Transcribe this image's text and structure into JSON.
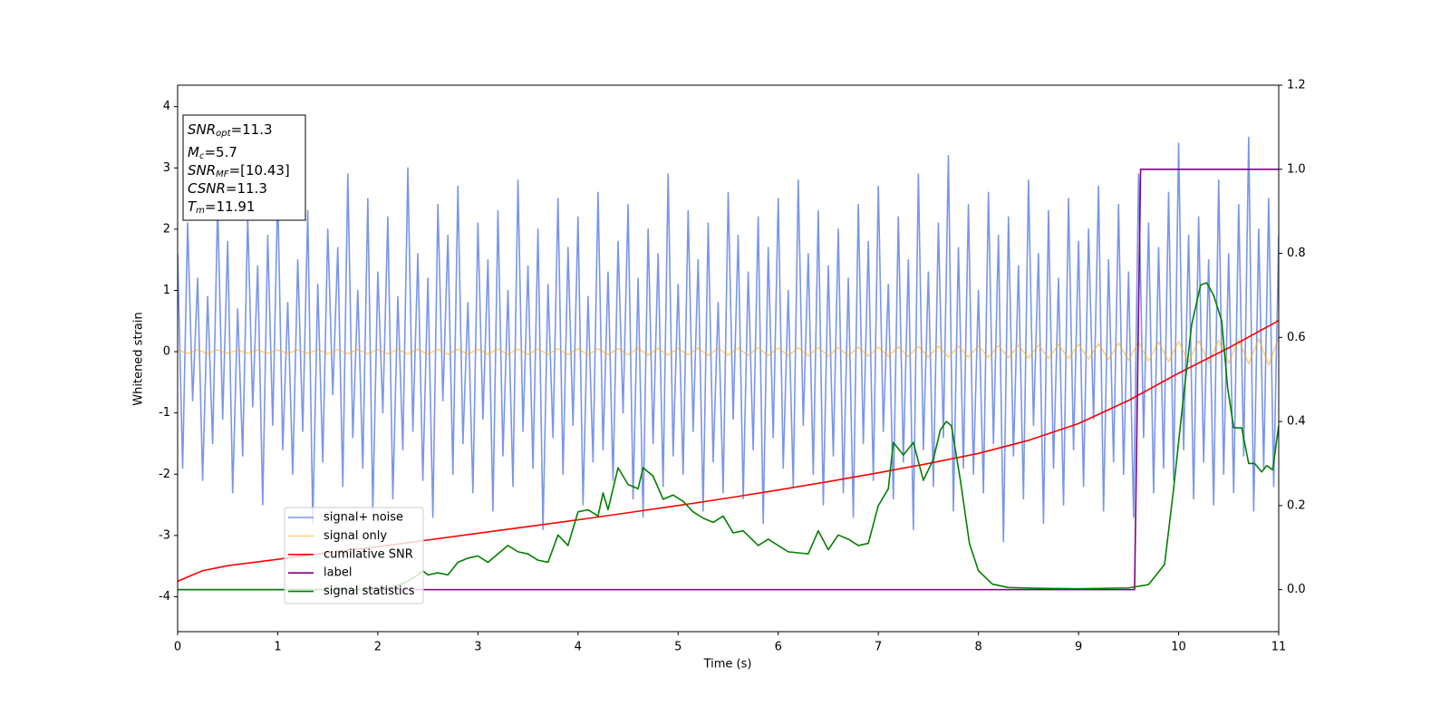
{
  "chart_data": {
    "type": "line",
    "xlabel": "Time (s)",
    "ylabel": "Whitened strain",
    "xlim": [
      0,
      11
    ],
    "xticks": [
      0,
      1,
      2,
      3,
      4,
      5,
      6,
      7,
      8,
      9,
      10,
      11
    ],
    "ylim": [
      -4.57,
      4.35
    ],
    "yticks": [
      -4,
      -3,
      -2,
      -1,
      0,
      1,
      2,
      3,
      4
    ],
    "y2lim": [
      -0.1,
      1.2
    ],
    "y2ticks": [
      {
        "value": 0,
        "label": "0.0"
      },
      {
        "value": 0.2,
        "label": "0.2"
      },
      {
        "value": 0.4,
        "label": "0.4"
      },
      {
        "value": 0.6,
        "label": "0.6"
      },
      {
        "value": 0.8,
        "label": "0.8"
      },
      {
        "value": 1,
        "label": "1.0"
      },
      {
        "value": 1.2,
        "label": "1.2"
      }
    ],
    "legend": "lower left",
    "annotation": [
      {
        "name": "SNR",
        "sub": "opt",
        "text": "=11.3"
      },
      {
        "name": "M",
        "sub": "c",
        "text": "=5.7"
      },
      {
        "name": "SNR",
        "sub": "MF",
        "text": "=[10.43]"
      },
      {
        "name": "CSNR",
        "text": "=11.3"
      },
      {
        "name": "T",
        "sub": "m",
        "text": "=11.91"
      }
    ],
    "series": [
      {
        "name": "signal+ noise",
        "color": "#4169e1",
        "alpha": 0.7,
        "x": [
          0,
          0.05,
          0.1,
          0.15,
          0.2,
          0.25,
          0.3,
          0.35,
          0.4,
          0.45,
          0.5,
          0.55,
          0.6,
          0.65,
          0.7,
          0.75,
          0.8,
          0.85,
          0.9,
          0.95,
          1,
          1.05,
          1.1,
          1.15,
          1.2,
          1.25,
          1.3,
          1.35,
          1.4,
          1.45,
          1.5,
          1.55,
          1.6,
          1.65,
          1.7,
          1.75,
          1.8,
          1.85,
          1.9,
          1.95,
          2,
          2.05,
          2.1,
          2.15,
          2.2,
          2.25,
          2.3,
          2.35,
          2.4,
          2.45,
          2.5,
          2.55,
          2.6,
          2.65,
          2.7,
          2.75,
          2.8,
          2.85,
          2.9,
          2.95,
          3,
          3.05,
          3.1,
          3.15,
          3.2,
          3.25,
          3.3,
          3.35,
          3.4,
          3.45,
          3.5,
          3.55,
          3.6,
          3.65,
          3.7,
          3.75,
          3.8,
          3.85,
          3.9,
          3.95,
          4,
          4.05,
          4.1,
          4.15,
          4.2,
          4.25,
          4.3,
          4.35,
          4.4,
          4.45,
          4.5,
          4.55,
          4.6,
          4.65,
          4.7,
          4.75,
          4.8,
          4.85,
          4.9,
          4.95,
          5,
          5.05,
          5.1,
          5.15,
          5.2,
          5.25,
          5.3,
          5.35,
          5.4,
          5.45,
          5.5,
          5.55,
          5.6,
          5.65,
          5.7,
          5.75,
          5.8,
          5.85,
          5.9,
          5.95,
          6,
          6.05,
          6.1,
          6.15,
          6.2,
          6.25,
          6.3,
          6.35,
          6.4,
          6.45,
          6.5,
          6.55,
          6.6,
          6.65,
          6.7,
          6.75,
          6.8,
          6.85,
          6.9,
          6.95,
          7,
          7.05,
          7.1,
          7.15,
          7.2,
          7.25,
          7.3,
          7.35,
          7.4,
          7.45,
          7.5,
          7.55,
          7.6,
          7.65,
          7.7,
          7.75,
          7.8,
          7.85,
          7.9,
          7.95,
          8,
          8.05,
          8.1,
          8.15,
          8.2,
          8.25,
          8.3,
          8.35,
          8.4,
          8.45,
          8.5,
          8.55,
          8.6,
          8.65,
          8.7,
          8.75,
          8.8,
          8.85,
          8.9,
          8.95,
          9,
          9.05,
          9.1,
          9.15,
          9.2,
          9.25,
          9.3,
          9.35,
          9.4,
          9.45,
          9.5,
          9.55,
          9.6,
          9.65,
          9.7,
          9.75,
          9.8,
          9.85,
          9.9,
          9.95,
          10,
          10.05,
          10.1,
          10.15,
          10.2,
          10.25,
          10.3,
          10.35,
          10.4,
          10.45,
          10.5,
          10.55,
          10.6,
          10.65,
          10.7,
          10.75,
          10.8,
          10.85,
          10.9,
          10.95,
          11
        ],
        "values": [
          1.6,
          -1.9,
          2.1,
          -0.8,
          1.2,
          -2.1,
          0.9,
          -1.5,
          2.4,
          -1.1,
          1.8,
          -2.3,
          0.7,
          -1.7,
          2.2,
          -0.9,
          1.4,
          -2.5,
          1.9,
          -1.2,
          2.6,
          -1.6,
          0.8,
          -2.0,
          1.5,
          -1.3,
          2.3,
          -2.8,
          1.1,
          -1.8,
          2.0,
          -0.7,
          1.7,
          -2.2,
          2.9,
          -1.4,
          1.0,
          -1.9,
          2.5,
          -2.6,
          1.3,
          -1.0,
          2.2,
          -2.4,
          0.9,
          -1.6,
          3.0,
          -1.3,
          1.6,
          -2.1,
          1.2,
          -2.7,
          2.4,
          -0.8,
          1.9,
          -2.0,
          2.7,
          -1.5,
          0.8,
          -2.3,
          2.1,
          -1.1,
          1.5,
          -2.6,
          2.3,
          -1.7,
          1.0,
          -2.2,
          2.8,
          -1.3,
          1.4,
          -1.9,
          2.0,
          -2.9,
          1.1,
          -1.4,
          2.5,
          -2.0,
          1.7,
          -1.2,
          2.2,
          -2.5,
          0.9,
          -1.8,
          2.6,
          -1.6,
          1.3,
          -2.1,
          1.8,
          -1.0,
          2.4,
          -2.4,
          1.2,
          -2.7,
          2.0,
          -1.5,
          1.6,
          -2.2,
          2.9,
          -1.7,
          1.1,
          -2.0,
          2.3,
          -1.3,
          1.5,
          -2.6,
          2.1,
          -1.8,
          0.8,
          -2.3,
          2.6,
          -1.1,
          1.9,
          -2.4,
          1.3,
          -1.6,
          2.2,
          -2.8,
          1.7,
          -1.4,
          2.5,
          -1.9,
          1.0,
          -2.2,
          2.8,
          -1.2,
          1.6,
          -2.0,
          2.3,
          -2.5,
          1.4,
          -1.7,
          2.0,
          -2.3,
          1.2,
          -2.7,
          2.4,
          -1.5,
          1.8,
          -2.1,
          2.7,
          -1.3,
          1.1,
          -2.4,
          2.2,
          -1.8,
          1.5,
          -2.9,
          2.9,
          -1.6,
          1.3,
          -2.2,
          2.1,
          -1.4,
          3.2,
          -2.6,
          1.7,
          -1.9,
          2.4,
          -2.0,
          1.0,
          -2.3,
          2.6,
          -1.5,
          1.9,
          -3.1,
          2.2,
          -1.7,
          1.4,
          -2.4,
          2.8,
          -1.2,
          1.6,
          -2.8,
          2.3,
          -1.9,
          1.2,
          -2.5,
          2.5,
          -1.6,
          1.8,
          -2.2,
          2.0,
          -1.1,
          2.7,
          -2.6,
          1.5,
          -1.8,
          2.4,
          -2.0,
          1.3,
          -2.7,
          2.9,
          -1.4,
          2.1,
          -2.3,
          1.7,
          -1.9,
          2.6,
          -2.1,
          3.4,
          -1.6,
          1.9,
          -2.4,
          2.2,
          -1.8,
          1.5,
          -2.5,
          2.8,
          -2.0,
          1.6,
          -2.3,
          2.4,
          -1.7,
          3.5,
          -2.6,
          2.0,
          -1.9,
          2.5,
          -2.2,
          1.9
        ]
      },
      {
        "name": "signal only",
        "color": "#ffa500",
        "alpha": 0.5,
        "x": [
          0,
          0.1,
          0.2,
          0.3,
          0.4,
          0.5,
          0.6,
          0.7,
          0.8,
          0.9,
          1,
          1.1,
          1.2,
          1.3,
          1.4,
          1.5,
          1.6,
          1.7,
          1.8,
          1.9,
          2,
          2.1,
          2.2,
          2.3,
          2.4,
          2.5,
          2.6,
          2.7,
          2.8,
          2.9,
          3,
          3.1,
          3.2,
          3.3,
          3.4,
          3.5,
          3.6,
          3.7,
          3.8,
          3.9,
          4,
          4.1,
          4.2,
          4.3,
          4.4,
          4.5,
          4.6,
          4.7,
          4.8,
          4.9,
          5,
          5.1,
          5.2,
          5.3,
          5.4,
          5.5,
          5.6,
          5.7,
          5.8,
          5.9,
          6,
          6.1,
          6.2,
          6.3,
          6.4,
          6.5,
          6.6,
          6.7,
          6.8,
          6.9,
          7,
          7.1,
          7.2,
          7.3,
          7.4,
          7.5,
          7.6,
          7.7,
          7.8,
          7.9,
          8,
          8.1,
          8.2,
          8.3,
          8.4,
          8.5,
          8.6,
          8.7,
          8.8,
          8.9,
          9,
          9.1,
          9.2,
          9.3,
          9.4,
          9.5,
          9.6,
          9.7,
          9.8,
          9.9,
          10,
          10.1,
          10.2,
          10.3,
          10.4,
          10.5,
          10.6,
          10.7,
          10.8,
          10.9,
          11
        ],
        "values": [
          0.03,
          -0.03,
          0.03,
          -0.03,
          0.03,
          -0.03,
          0.03,
          -0.03,
          0.03,
          -0.03,
          0.03,
          -0.03,
          0.03,
          -0.03,
          0.035,
          -0.035,
          0.035,
          -0.035,
          0.035,
          -0.035,
          0.035,
          -0.035,
          0.04,
          -0.04,
          0.04,
          -0.04,
          0.04,
          -0.04,
          0.04,
          -0.04,
          0.04,
          -0.04,
          0.045,
          -0.045,
          0.045,
          -0.045,
          0.045,
          -0.045,
          0.05,
          -0.05,
          0.05,
          -0.05,
          0.05,
          -0.05,
          0.05,
          -0.05,
          0.055,
          -0.055,
          0.055,
          -0.055,
          0.055,
          -0.055,
          0.06,
          -0.06,
          0.06,
          -0.06,
          0.06,
          -0.06,
          0.065,
          -0.065,
          0.065,
          -0.065,
          0.065,
          -0.065,
          0.07,
          -0.07,
          0.07,
          -0.07,
          0.075,
          -0.075,
          0.075,
          -0.075,
          0.08,
          -0.08,
          0.085,
          -0.085,
          0.09,
          -0.09,
          0.09,
          -0.09,
          0.095,
          -0.095,
          0.1,
          -0.1,
          0.105,
          -0.105,
          0.11,
          -0.11,
          0.115,
          -0.115,
          0.12,
          -0.12,
          0.13,
          -0.13,
          0.14,
          -0.14,
          0.15,
          -0.15,
          0.16,
          -0.16,
          0.17,
          -0.17,
          0.18,
          -0.18,
          0.19,
          -0.19,
          0.2,
          -0.2,
          0.21,
          -0.22,
          0.23
        ]
      },
      {
        "name": "cumilative SNR",
        "color": "#ff0000",
        "axis": "y2",
        "x": [
          0,
          0.25,
          0.5,
          1,
          1.5,
          2,
          2.5,
          3,
          3.5,
          4,
          4.5,
          5,
          5.5,
          6,
          6.5,
          7,
          7.5,
          8,
          8.5,
          9,
          9.5,
          10,
          10.5,
          11
        ],
        "values": [
          0.02,
          0.045,
          0.057,
          0.072,
          0.088,
          0.102,
          0.118,
          0.134,
          0.15,
          0.166,
          0.183,
          0.2,
          0.218,
          0.237,
          0.257,
          0.278,
          0.3,
          0.324,
          0.355,
          0.395,
          0.45,
          0.515,
          0.575,
          0.64
        ]
      },
      {
        "name": "label",
        "color": "#800080",
        "axis": "y2",
        "x": [
          0,
          9.56,
          9.62,
          11
        ],
        "values": [
          0,
          0,
          1,
          1
        ]
      },
      {
        "name": "signal statistics",
        "color": "#008000",
        "axis": "y2",
        "x": [
          0,
          2,
          2.2,
          2.3,
          2.4,
          2.45,
          2.5,
          2.6,
          2.7,
          2.8,
          2.9,
          3,
          3.1,
          3.3,
          3.4,
          3.5,
          3.6,
          3.7,
          3.8,
          3.9,
          4,
          4.1,
          4.2,
          4.25,
          4.3,
          4.4,
          4.5,
          4.6,
          4.65,
          4.75,
          4.85,
          4.95,
          5.05,
          5.15,
          5.25,
          5.35,
          5.45,
          5.55,
          5.65,
          5.8,
          5.9,
          6,
          6.1,
          6.3,
          6.4,
          6.5,
          6.6,
          6.7,
          6.8,
          6.9,
          7,
          7.1,
          7.15,
          7.25,
          7.35,
          7.45,
          7.55,
          7.62,
          7.68,
          7.73,
          7.82,
          7.91,
          8,
          8.14,
          8.3,
          8.6,
          9,
          9.5,
          9.7,
          9.86,
          9.95,
          10.04,
          10.13,
          10.22,
          10.28,
          10.35,
          10.43,
          10.49,
          10.55,
          10.63,
          10.7,
          10.76,
          10.83,
          10.88,
          10.94,
          11
        ],
        "values": [
          0,
          0,
          0.01,
          0.02,
          0.035,
          0.045,
          0.035,
          0.04,
          0.035,
          0.065,
          0.075,
          0.08,
          0.065,
          0.105,
          0.09,
          0.085,
          0.07,
          0.065,
          0.13,
          0.105,
          0.185,
          0.19,
          0.175,
          0.23,
          0.19,
          0.29,
          0.25,
          0.24,
          0.29,
          0.27,
          0.215,
          0.225,
          0.21,
          0.185,
          0.17,
          0.16,
          0.175,
          0.135,
          0.14,
          0.105,
          0.12,
          0.105,
          0.09,
          0.085,
          0.14,
          0.095,
          0.13,
          0.12,
          0.105,
          0.11,
          0.2,
          0.24,
          0.35,
          0.32,
          0.35,
          0.26,
          0.31,
          0.38,
          0.4,
          0.39,
          0.26,
          0.11,
          0.045,
          0.013,
          0.005,
          0.003,
          0.002,
          0.004,
          0.012,
          0.06,
          0.24,
          0.44,
          0.63,
          0.725,
          0.73,
          0.7,
          0.64,
          0.48,
          0.385,
          0.385,
          0.3,
          0.3,
          0.28,
          0.295,
          0.285,
          0.39
        ]
      }
    ]
  }
}
